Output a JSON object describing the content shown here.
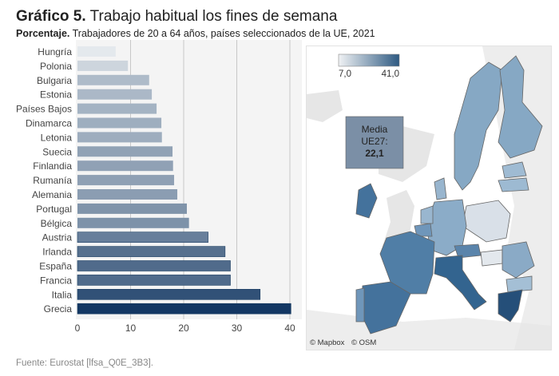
{
  "title": {
    "bold": "Gráfico 5.",
    "text": "Trabajo habitual los fines de semana"
  },
  "subtitle": {
    "bold": "Porcentaje.",
    "text": "Trabajadores de 20 a 64 años, países seleccionados de la UE, 2021"
  },
  "source": "Fuente: Eurostat [lfsa_Q0E_3B3].",
  "chart_data": {
    "type": "bar",
    "orientation": "horizontal",
    "categories": [
      "Hungría",
      "Polonia",
      "Bulgaria",
      "Estonia",
      "Países Bajos",
      "Dinamarca",
      "Letonia",
      "Suecia",
      "Finlandia",
      "Rumanía",
      "Alemania",
      "Portugal",
      "Bélgica",
      "Austria",
      "Irlanda",
      "España",
      "Francia",
      "Italia",
      "Grecia"
    ],
    "values": [
      7.2,
      9.5,
      13.5,
      14.0,
      14.9,
      15.8,
      15.9,
      17.9,
      18.0,
      18.2,
      18.8,
      20.6,
      21.0,
      24.6,
      27.8,
      28.8,
      28.8,
      34.4,
      40.2
    ],
    "xlim": [
      0,
      42
    ],
    "xticks": [
      "0",
      "10",
      "20",
      "30",
      "40"
    ],
    "grid": true,
    "color_scale": {
      "min": 7.0,
      "max": 41.0,
      "min_label": "7,0",
      "max_label": "41,0",
      "low_color": "#e8ecef",
      "high_color": "#0f3460"
    }
  },
  "map": {
    "mean_box": {
      "line1": "Media",
      "line2": "UE27:",
      "value": "22,1"
    },
    "attribution": [
      "© Mapbox",
      "© OSM"
    ]
  }
}
